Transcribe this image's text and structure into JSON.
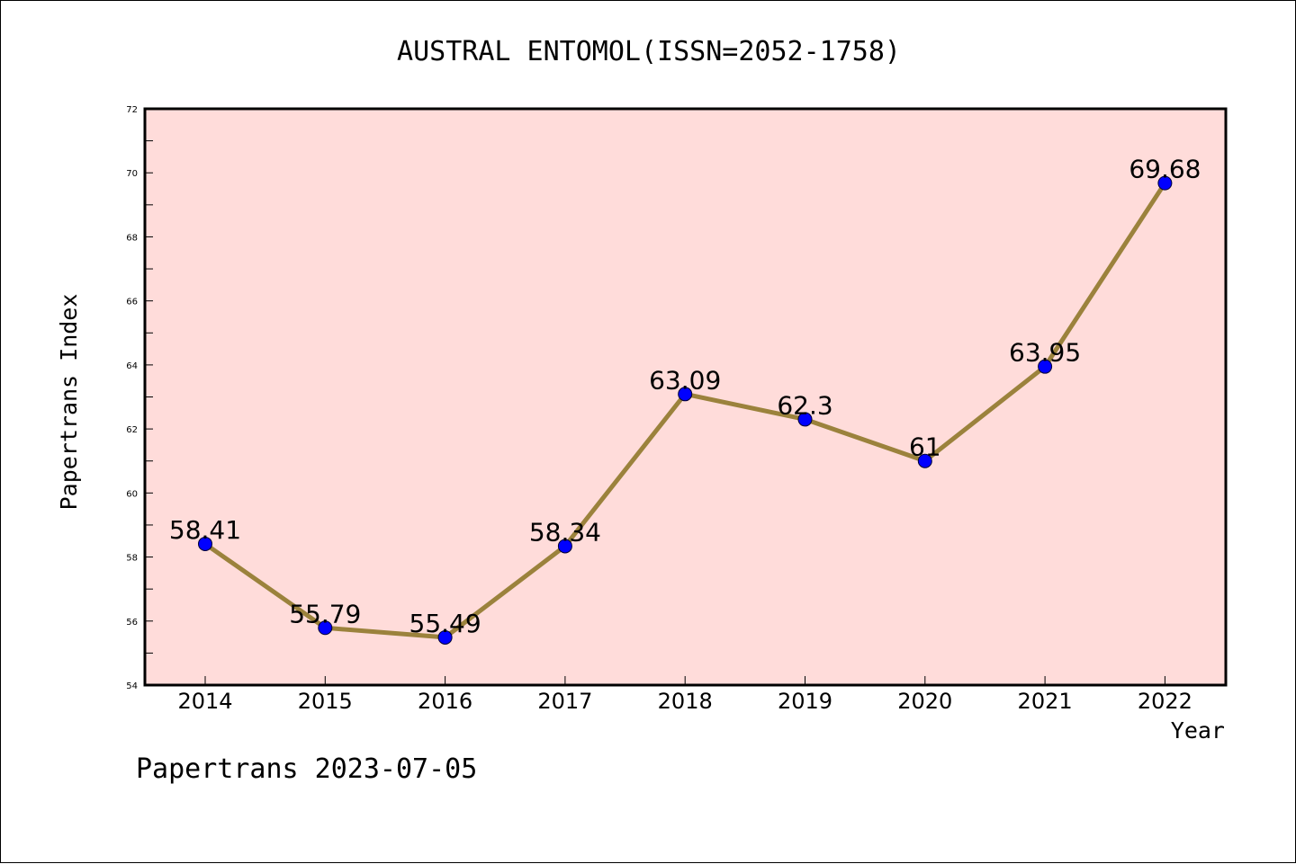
{
  "footer": "Papertrans 2023-07-05",
  "chart_data": {
    "type": "line",
    "title": "AUSTRAL ENTOMOL(ISSN=2052-1758)",
    "xlabel": "Year",
    "ylabel": "Papertrans Index",
    "categories": [
      "2014",
      "2015",
      "2016",
      "2017",
      "2018",
      "2019",
      "2020",
      "2021",
      "2022"
    ],
    "values": [
      58.41,
      55.79,
      55.49,
      58.34,
      63.09,
      62.3,
      61,
      63.95,
      69.68
    ],
    "data_labels": [
      "58.41",
      "55.79",
      "55.49",
      "58.34",
      "63.09",
      "62.3",
      "61",
      "63.95",
      "69.68"
    ],
    "ylim": [
      54,
      72
    ],
    "yticks": [
      "54",
      "56",
      "58",
      "60",
      "62",
      "64",
      "66",
      "68",
      "70",
      "72"
    ],
    "grid": false,
    "colors": {
      "plot_background": "#ffdcda",
      "line": "#9b823c",
      "marker": "#0000ff"
    }
  }
}
